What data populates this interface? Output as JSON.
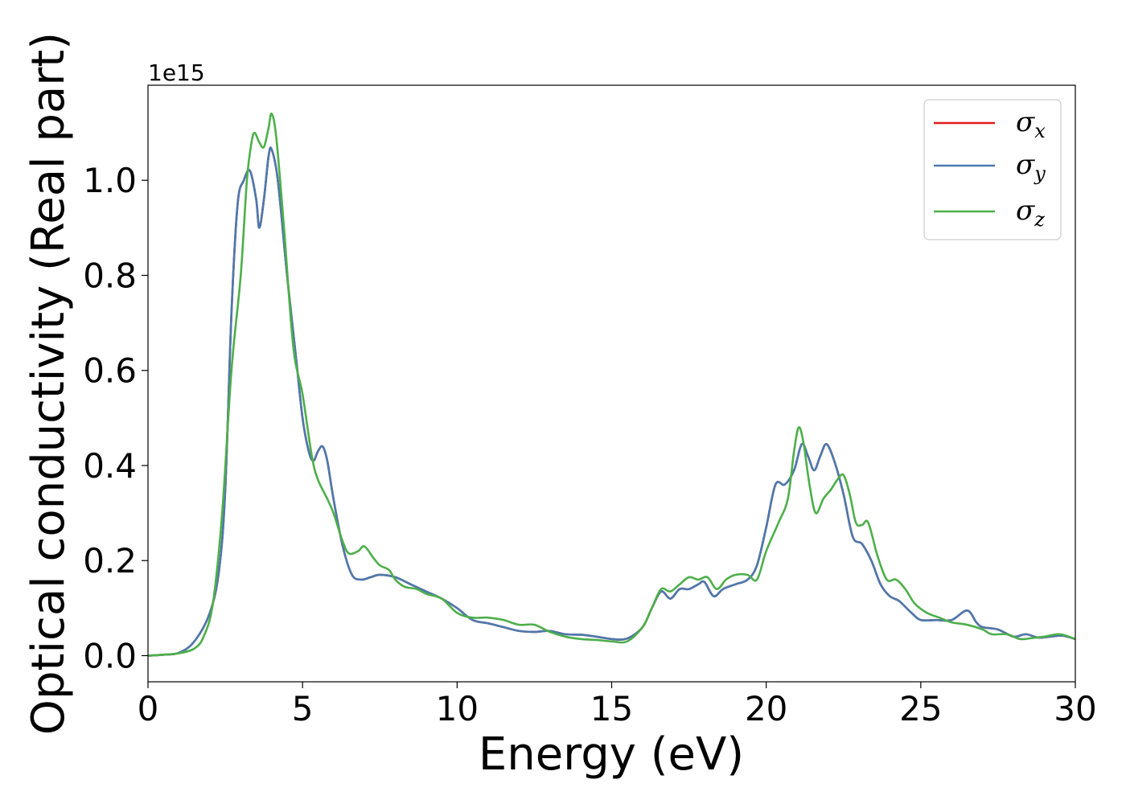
{
  "chart_data": {
    "type": "line",
    "xlabel": "Energy (eV)",
    "ylabel": "Optical conductivity (Real part)",
    "y_offset_label": "1e15",
    "xlim": [
      0,
      30
    ],
    "ylim": [
      -0.055,
      1.2
    ],
    "x_ticks": [
      0,
      5,
      10,
      15,
      20,
      25,
      30
    ],
    "x_tick_labels": [
      "0",
      "5",
      "10",
      "15",
      "20",
      "25",
      "30"
    ],
    "y_ticks": [
      0.0,
      0.2,
      0.4,
      0.6,
      0.8,
      1.0
    ],
    "y_tick_labels": [
      "0.0",
      "0.2",
      "0.4",
      "0.6",
      "0.8",
      "1.0"
    ],
    "grid": false,
    "legend_position": "top-right",
    "series": [
      {
        "name": "σ",
        "subscript": "x",
        "color": "#e41a1c",
        "points": [
          [
            0,
            0
          ],
          [
            0.5,
            0.002
          ],
          [
            1,
            0.006
          ],
          [
            1.5,
            0.03
          ],
          [
            2,
            0.09
          ],
          [
            2.3,
            0.18
          ],
          [
            2.5,
            0.35
          ],
          [
            2.7,
            0.72
          ],
          [
            2.9,
            0.95
          ],
          [
            3.1,
            1.0
          ],
          [
            3.3,
            1.02
          ],
          [
            3.5,
            0.96
          ],
          [
            3.6,
            0.9
          ],
          [
            3.75,
            0.96
          ],
          [
            3.9,
            1.05
          ],
          [
            4.0,
            1.065
          ],
          [
            4.2,
            1.0
          ],
          [
            4.5,
            0.8
          ],
          [
            4.8,
            0.62
          ],
          [
            5.0,
            0.5
          ],
          [
            5.2,
            0.43
          ],
          [
            5.35,
            0.41
          ],
          [
            5.5,
            0.43
          ],
          [
            5.65,
            0.44
          ],
          [
            5.8,
            0.41
          ],
          [
            6.0,
            0.33
          ],
          [
            6.3,
            0.23
          ],
          [
            6.6,
            0.17
          ],
          [
            6.9,
            0.16
          ],
          [
            7.2,
            0.165
          ],
          [
            7.5,
            0.17
          ],
          [
            8.0,
            0.165
          ],
          [
            8.5,
            0.15
          ],
          [
            9.0,
            0.135
          ],
          [
            9.5,
            0.12
          ],
          [
            10.0,
            0.1
          ],
          [
            10.5,
            0.075
          ],
          [
            11.0,
            0.068
          ],
          [
            11.5,
            0.06
          ],
          [
            12.0,
            0.052
          ],
          [
            12.5,
            0.05
          ],
          [
            13.0,
            0.052
          ],
          [
            13.5,
            0.045
          ],
          [
            14.0,
            0.044
          ],
          [
            14.5,
            0.04
          ],
          [
            15.0,
            0.035
          ],
          [
            15.5,
            0.036
          ],
          [
            16.0,
            0.06
          ],
          [
            16.3,
            0.1
          ],
          [
            16.6,
            0.135
          ],
          [
            16.9,
            0.12
          ],
          [
            17.2,
            0.14
          ],
          [
            17.5,
            0.14
          ],
          [
            17.8,
            0.15
          ],
          [
            18.0,
            0.155
          ],
          [
            18.3,
            0.125
          ],
          [
            18.6,
            0.14
          ],
          [
            19.0,
            0.15
          ],
          [
            19.4,
            0.16
          ],
          [
            19.7,
            0.19
          ],
          [
            20.0,
            0.27
          ],
          [
            20.3,
            0.36
          ],
          [
            20.6,
            0.36
          ],
          [
            20.9,
            0.39
          ],
          [
            21.15,
            0.445
          ],
          [
            21.35,
            0.42
          ],
          [
            21.55,
            0.39
          ],
          [
            21.75,
            0.42
          ],
          [
            21.95,
            0.445
          ],
          [
            22.2,
            0.41
          ],
          [
            22.5,
            0.34
          ],
          [
            22.8,
            0.25
          ],
          [
            23.1,
            0.235
          ],
          [
            23.4,
            0.2
          ],
          [
            23.7,
            0.15
          ],
          [
            24.0,
            0.125
          ],
          [
            24.3,
            0.115
          ],
          [
            24.7,
            0.09
          ],
          [
            25.0,
            0.075
          ],
          [
            25.5,
            0.075
          ],
          [
            26.0,
            0.075
          ],
          [
            26.5,
            0.095
          ],
          [
            26.8,
            0.07
          ],
          [
            27.0,
            0.06
          ],
          [
            27.5,
            0.055
          ],
          [
            28.0,
            0.04
          ],
          [
            28.4,
            0.045
          ],
          [
            28.8,
            0.038
          ],
          [
            29.2,
            0.04
          ],
          [
            29.6,
            0.042
          ],
          [
            30.0,
            0.035
          ]
        ]
      },
      {
        "name": "σ",
        "subscript": "y",
        "color": "#4a7aae",
        "points": [
          [
            0,
            0
          ],
          [
            0.5,
            0.002
          ],
          [
            1,
            0.006
          ],
          [
            1.5,
            0.03
          ],
          [
            2,
            0.09
          ],
          [
            2.3,
            0.18
          ],
          [
            2.5,
            0.35
          ],
          [
            2.7,
            0.72
          ],
          [
            2.9,
            0.95
          ],
          [
            3.1,
            1.0
          ],
          [
            3.3,
            1.02
          ],
          [
            3.5,
            0.96
          ],
          [
            3.6,
            0.9
          ],
          [
            3.75,
            0.96
          ],
          [
            3.9,
            1.05
          ],
          [
            4.0,
            1.065
          ],
          [
            4.2,
            1.0
          ],
          [
            4.5,
            0.8
          ],
          [
            4.8,
            0.62
          ],
          [
            5.0,
            0.5
          ],
          [
            5.2,
            0.43
          ],
          [
            5.35,
            0.41
          ],
          [
            5.5,
            0.43
          ],
          [
            5.65,
            0.44
          ],
          [
            5.8,
            0.41
          ],
          [
            6.0,
            0.33
          ],
          [
            6.3,
            0.23
          ],
          [
            6.6,
            0.17
          ],
          [
            6.9,
            0.16
          ],
          [
            7.2,
            0.165
          ],
          [
            7.5,
            0.17
          ],
          [
            8.0,
            0.165
          ],
          [
            8.5,
            0.15
          ],
          [
            9.0,
            0.135
          ],
          [
            9.5,
            0.12
          ],
          [
            10.0,
            0.1
          ],
          [
            10.5,
            0.075
          ],
          [
            11.0,
            0.068
          ],
          [
            11.5,
            0.06
          ],
          [
            12.0,
            0.052
          ],
          [
            12.5,
            0.05
          ],
          [
            13.0,
            0.052
          ],
          [
            13.5,
            0.045
          ],
          [
            14.0,
            0.044
          ],
          [
            14.5,
            0.04
          ],
          [
            15.0,
            0.035
          ],
          [
            15.5,
            0.036
          ],
          [
            16.0,
            0.06
          ],
          [
            16.3,
            0.1
          ],
          [
            16.6,
            0.135
          ],
          [
            16.9,
            0.12
          ],
          [
            17.2,
            0.14
          ],
          [
            17.5,
            0.14
          ],
          [
            17.8,
            0.15
          ],
          [
            18.0,
            0.155
          ],
          [
            18.3,
            0.125
          ],
          [
            18.6,
            0.14
          ],
          [
            19.0,
            0.15
          ],
          [
            19.4,
            0.16
          ],
          [
            19.7,
            0.19
          ],
          [
            20.0,
            0.27
          ],
          [
            20.3,
            0.36
          ],
          [
            20.6,
            0.36
          ],
          [
            20.9,
            0.39
          ],
          [
            21.15,
            0.445
          ],
          [
            21.35,
            0.42
          ],
          [
            21.55,
            0.39
          ],
          [
            21.75,
            0.42
          ],
          [
            21.95,
            0.445
          ],
          [
            22.2,
            0.41
          ],
          [
            22.5,
            0.34
          ],
          [
            22.8,
            0.25
          ],
          [
            23.1,
            0.235
          ],
          [
            23.4,
            0.2
          ],
          [
            23.7,
            0.15
          ],
          [
            24.0,
            0.125
          ],
          [
            24.3,
            0.115
          ],
          [
            24.7,
            0.09
          ],
          [
            25.0,
            0.075
          ],
          [
            25.5,
            0.075
          ],
          [
            26.0,
            0.075
          ],
          [
            26.5,
            0.095
          ],
          [
            26.8,
            0.07
          ],
          [
            27.0,
            0.06
          ],
          [
            27.5,
            0.055
          ],
          [
            28.0,
            0.04
          ],
          [
            28.4,
            0.045
          ],
          [
            28.8,
            0.038
          ],
          [
            29.2,
            0.04
          ],
          [
            29.6,
            0.042
          ],
          [
            30.0,
            0.035
          ]
        ]
      },
      {
        "name": "σ",
        "subscript": "z",
        "color": "#4daf4a",
        "points": [
          [
            0,
            0
          ],
          [
            0.5,
            0.002
          ],
          [
            1,
            0.005
          ],
          [
            1.5,
            0.015
          ],
          [
            1.8,
            0.04
          ],
          [
            2.1,
            0.11
          ],
          [
            2.4,
            0.3
          ],
          [
            2.7,
            0.6
          ],
          [
            3.0,
            0.8
          ],
          [
            3.2,
            1.0
          ],
          [
            3.35,
            1.08
          ],
          [
            3.45,
            1.1
          ],
          [
            3.6,
            1.08
          ],
          [
            3.75,
            1.07
          ],
          [
            3.9,
            1.11
          ],
          [
            4.0,
            1.14
          ],
          [
            4.15,
            1.09
          ],
          [
            4.4,
            0.9
          ],
          [
            4.7,
            0.65
          ],
          [
            5.0,
            0.55
          ],
          [
            5.3,
            0.42
          ],
          [
            5.5,
            0.37
          ],
          [
            5.8,
            0.33
          ],
          [
            6.0,
            0.3
          ],
          [
            6.3,
            0.24
          ],
          [
            6.5,
            0.215
          ],
          [
            6.8,
            0.22
          ],
          [
            7.0,
            0.23
          ],
          [
            7.3,
            0.205
          ],
          [
            7.5,
            0.19
          ],
          [
            7.8,
            0.18
          ],
          [
            8.0,
            0.16
          ],
          [
            8.3,
            0.145
          ],
          [
            8.7,
            0.14
          ],
          [
            9.0,
            0.13
          ],
          [
            9.5,
            0.12
          ],
          [
            10.0,
            0.09
          ],
          [
            10.5,
            0.08
          ],
          [
            11.0,
            0.08
          ],
          [
            11.5,
            0.075
          ],
          [
            12.0,
            0.065
          ],
          [
            12.5,
            0.065
          ],
          [
            13.0,
            0.05
          ],
          [
            13.5,
            0.04
          ],
          [
            14.0,
            0.035
          ],
          [
            14.5,
            0.033
          ],
          [
            15.0,
            0.03
          ],
          [
            15.5,
            0.03
          ],
          [
            16.0,
            0.06
          ],
          [
            16.3,
            0.1
          ],
          [
            16.6,
            0.14
          ],
          [
            16.9,
            0.135
          ],
          [
            17.2,
            0.15
          ],
          [
            17.5,
            0.165
          ],
          [
            17.8,
            0.16
          ],
          [
            18.1,
            0.165
          ],
          [
            18.4,
            0.14
          ],
          [
            18.7,
            0.16
          ],
          [
            19.0,
            0.17
          ],
          [
            19.4,
            0.17
          ],
          [
            19.7,
            0.16
          ],
          [
            20.0,
            0.22
          ],
          [
            20.4,
            0.28
          ],
          [
            20.7,
            0.33
          ],
          [
            20.9,
            0.43
          ],
          [
            21.05,
            0.48
          ],
          [
            21.2,
            0.45
          ],
          [
            21.4,
            0.36
          ],
          [
            21.6,
            0.3
          ],
          [
            21.85,
            0.33
          ],
          [
            22.1,
            0.35
          ],
          [
            22.3,
            0.37
          ],
          [
            22.5,
            0.38
          ],
          [
            22.7,
            0.34
          ],
          [
            22.9,
            0.28
          ],
          [
            23.1,
            0.275
          ],
          [
            23.3,
            0.28
          ],
          [
            23.6,
            0.21
          ],
          [
            23.9,
            0.16
          ],
          [
            24.2,
            0.16
          ],
          [
            24.5,
            0.14
          ],
          [
            24.8,
            0.11
          ],
          [
            25.2,
            0.09
          ],
          [
            25.6,
            0.08
          ],
          [
            26.0,
            0.07
          ],
          [
            26.5,
            0.065
          ],
          [
            27.0,
            0.055
          ],
          [
            27.3,
            0.045
          ],
          [
            27.8,
            0.045
          ],
          [
            28.2,
            0.035
          ],
          [
            28.6,
            0.037
          ],
          [
            29.0,
            0.04
          ],
          [
            29.5,
            0.045
          ],
          [
            30.0,
            0.035
          ]
        ]
      }
    ]
  }
}
